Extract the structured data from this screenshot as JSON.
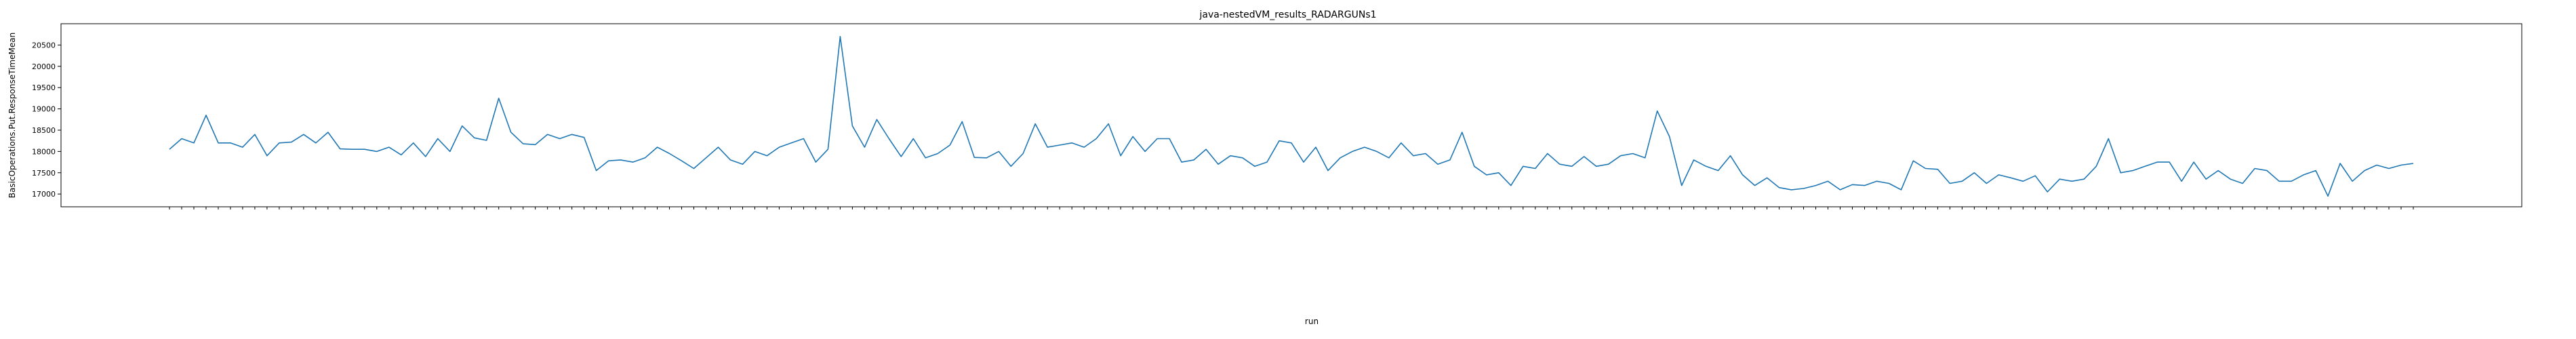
{
  "chart_data": {
    "type": "line",
    "title": "java-nestedVM_results_RADARGUNs1",
    "xlabel": "run",
    "ylabel": "BasicOperations.Put.ResponseTimeMean",
    "ylim": [
      16700,
      21000
    ],
    "yticks": [
      17000,
      17500,
      18000,
      18500,
      19000,
      19500,
      20000,
      20500
    ],
    "grid": false,
    "line_color": "#1f77b4",
    "x_tick_labels_note": "rotated tick labels are unreadable in the source image",
    "series": [
      {
        "values": [
          18050,
          18300,
          18200,
          18850,
          18200,
          18200,
          18100,
          18400,
          17900,
          18200,
          18220,
          18400,
          18200,
          18450,
          18060,
          18050,
          18050,
          18000,
          18100,
          17920,
          18200,
          17880,
          18300,
          18000,
          18600,
          18320,
          18260,
          19250,
          18450,
          18180,
          18160,
          18400,
          18300,
          18400,
          18330,
          17550,
          17780,
          17800,
          17750,
          17850,
          18100,
          17950,
          17780,
          17600,
          17850,
          18100,
          17800,
          17700,
          18000,
          17900,
          18100,
          18200,
          18300,
          17750,
          18050,
          20700,
          18600,
          18100,
          18750,
          18300,
          17880,
          18300,
          17850,
          17950,
          18150,
          18700,
          17860,
          17850,
          18000,
          17650,
          17950,
          18650,
          18100,
          18150,
          18200,
          18100,
          18300,
          18650,
          17900,
          18350,
          18000,
          18300,
          18300,
          17750,
          17800,
          18050,
          17700,
          17900,
          17850,
          17650,
          17750,
          18250,
          18200,
          17750,
          18100,
          17550,
          17850,
          18000,
          18100,
          18000,
          17850,
          18200,
          17900,
          17950,
          17700,
          17800,
          18450,
          17650,
          17450,
          17500,
          17200,
          17650,
          17600,
          17950,
          17700,
          17650,
          17880,
          17650,
          17700,
          17900,
          17950,
          17850,
          18950,
          18350,
          17200,
          17800,
          17650,
          17550,
          17900,
          17450,
          17200,
          17380,
          17150,
          17100,
          17130,
          17200,
          17300,
          17100,
          17220,
          17200,
          17300,
          17250,
          17100,
          17780,
          17600,
          17580,
          17250,
          17300,
          17500,
          17250,
          17450,
          17380,
          17300,
          17430,
          17050,
          17350,
          17300,
          17350,
          17650,
          18300,
          17500,
          17550,
          17650,
          17750,
          17750,
          17300,
          17750,
          17350,
          17550,
          17350,
          17250,
          17600,
          17550,
          17300,
          17300,
          17450,
          17550,
          16950,
          17720,
          17300,
          17550,
          17680,
          17600,
          17680,
          17720
        ]
      }
    ]
  }
}
